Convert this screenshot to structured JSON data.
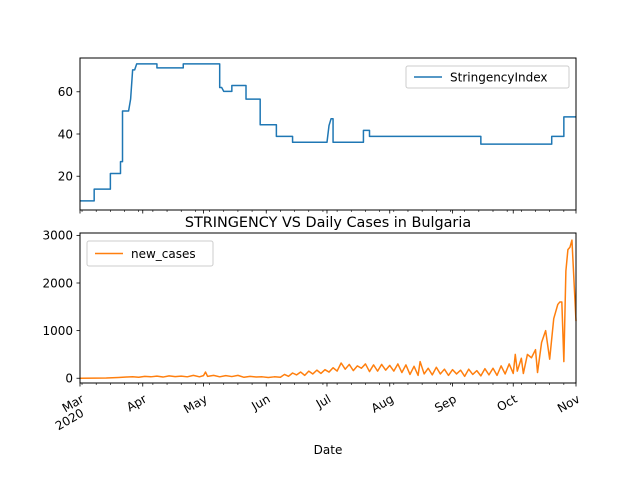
{
  "chart_data": [
    {
      "type": "line",
      "title": "",
      "xlabel": "",
      "ylabel": "",
      "x_range": [
        "2020-03-01",
        "2020-11-01"
      ],
      "ylim": [
        4,
        76
      ],
      "yticks": [
        20,
        40,
        60
      ],
      "legend": "top-right",
      "series": [
        {
          "name": "StringencyIndex",
          "color": "#1f77b4",
          "points": [
            [
              "2020-03-01",
              8.3
            ],
            [
              "2020-03-08",
              8.3
            ],
            [
              "2020-03-08",
              13.9
            ],
            [
              "2020-03-16",
              13.9
            ],
            [
              "2020-03-16",
              21.3
            ],
            [
              "2020-03-21",
              21.3
            ],
            [
              "2020-03-21",
              26.9
            ],
            [
              "2020-03-22",
              26.9
            ],
            [
              "2020-03-22",
              50.9
            ],
            [
              "2020-03-25",
              50.9
            ],
            [
              "2020-03-26",
              56.5
            ],
            [
              "2020-03-27",
              70.4
            ],
            [
              "2020-03-28",
              70.4
            ],
            [
              "2020-03-29",
              73.2
            ],
            [
              "2020-04-08",
              73.2
            ],
            [
              "2020-04-08",
              71.3
            ],
            [
              "2020-04-21",
              71.3
            ],
            [
              "2020-04-21",
              73.2
            ],
            [
              "2020-05-09",
              73.2
            ],
            [
              "2020-05-09",
              62.0
            ],
            [
              "2020-05-10",
              62.0
            ],
            [
              "2020-05-11",
              60.2
            ],
            [
              "2020-05-15",
              60.2
            ],
            [
              "2020-05-15",
              63.0
            ],
            [
              "2020-05-22",
              63.0
            ],
            [
              "2020-05-22",
              56.5
            ],
            [
              "2020-05-29",
              56.5
            ],
            [
              "2020-05-29",
              44.4
            ],
            [
              "2020-06-06",
              44.4
            ],
            [
              "2020-06-06",
              38.9
            ],
            [
              "2020-06-14",
              38.9
            ],
            [
              "2020-06-14",
              36.1
            ],
            [
              "2020-07-01",
              36.1
            ],
            [
              "2020-07-02",
              44.0
            ],
            [
              "2020-07-03",
              47.2
            ],
            [
              "2020-07-04",
              47.2
            ],
            [
              "2020-07-04",
              36.1
            ],
            [
              "2020-07-19",
              36.1
            ],
            [
              "2020-07-19",
              41.7
            ],
            [
              "2020-07-22",
              41.7
            ],
            [
              "2020-07-22",
              38.9
            ],
            [
              "2020-09-15",
              38.9
            ],
            [
              "2020-09-15",
              35.2
            ],
            [
              "2020-10-20",
              35.2
            ],
            [
              "2020-10-20",
              38.9
            ],
            [
              "2020-10-26",
              38.9
            ],
            [
              "2020-10-26",
              48.1
            ],
            [
              "2020-11-01",
              48.1
            ]
          ]
        }
      ]
    },
    {
      "type": "line",
      "title": "STRINGENCY VS Daily Cases in Bulgaria",
      "xlabel": "Date",
      "ylabel": "",
      "x_range": [
        "2020-03-01",
        "2020-11-01"
      ],
      "ylim": [
        -100,
        3050
      ],
      "yticks": [
        0,
        1000,
        2000,
        3000
      ],
      "legend": "top-left",
      "xticks": [
        {
          "date": "2020-03-01",
          "label": "Mar",
          "sub": "2020"
        },
        {
          "date": "2020-04-01",
          "label": "Apr"
        },
        {
          "date": "2020-05-01",
          "label": "May"
        },
        {
          "date": "2020-06-01",
          "label": "Jun"
        },
        {
          "date": "2020-07-01",
          "label": "Jul"
        },
        {
          "date": "2020-08-01",
          "label": "Aug"
        },
        {
          "date": "2020-09-01",
          "label": "Sep"
        },
        {
          "date": "2020-10-01",
          "label": "Oct"
        },
        {
          "date": "2020-11-01",
          "label": "Nov"
        }
      ],
      "series": [
        {
          "name": "new_cases",
          "color": "#ff7f0e",
          "points": [
            [
              "2020-03-01",
              0
            ],
            [
              "2020-03-08",
              2
            ],
            [
              "2020-03-14",
              5
            ],
            [
              "2020-03-20",
              15
            ],
            [
              "2020-03-24",
              25
            ],
            [
              "2020-03-27",
              30
            ],
            [
              "2020-03-30",
              20
            ],
            [
              "2020-04-02",
              40
            ],
            [
              "2020-04-05",
              30
            ],
            [
              "2020-04-08",
              45
            ],
            [
              "2020-04-11",
              25
            ],
            [
              "2020-04-14",
              50
            ],
            [
              "2020-04-17",
              35
            ],
            [
              "2020-04-20",
              45
            ],
            [
              "2020-04-23",
              30
            ],
            [
              "2020-04-26",
              60
            ],
            [
              "2020-04-29",
              30
            ],
            [
              "2020-05-01",
              55
            ],
            [
              "2020-05-02",
              130
            ],
            [
              "2020-05-03",
              40
            ],
            [
              "2020-05-06",
              60
            ],
            [
              "2020-05-09",
              30
            ],
            [
              "2020-05-12",
              55
            ],
            [
              "2020-05-15",
              35
            ],
            [
              "2020-05-18",
              60
            ],
            [
              "2020-05-21",
              20
            ],
            [
              "2020-05-24",
              40
            ],
            [
              "2020-05-27",
              25
            ],
            [
              "2020-05-30",
              30
            ],
            [
              "2020-06-02",
              15
            ],
            [
              "2020-06-05",
              30
            ],
            [
              "2020-06-08",
              20
            ],
            [
              "2020-06-10",
              80
            ],
            [
              "2020-06-12",
              40
            ],
            [
              "2020-06-14",
              110
            ],
            [
              "2020-06-16",
              70
            ],
            [
              "2020-06-18",
              130
            ],
            [
              "2020-06-20",
              60
            ],
            [
              "2020-06-22",
              150
            ],
            [
              "2020-06-24",
              90
            ],
            [
              "2020-06-26",
              170
            ],
            [
              "2020-06-28",
              100
            ],
            [
              "2020-06-30",
              180
            ],
            [
              "2020-07-02",
              130
            ],
            [
              "2020-07-04",
              220
            ],
            [
              "2020-07-06",
              150
            ],
            [
              "2020-07-08",
              320
            ],
            [
              "2020-07-10",
              190
            ],
            [
              "2020-07-12",
              290
            ],
            [
              "2020-07-14",
              160
            ],
            [
              "2020-07-16",
              260
            ],
            [
              "2020-07-18",
              210
            ],
            [
              "2020-07-20",
              300
            ],
            [
              "2020-07-22",
              140
            ],
            [
              "2020-07-24",
              280
            ],
            [
              "2020-07-26",
              150
            ],
            [
              "2020-07-28",
              290
            ],
            [
              "2020-07-30",
              170
            ],
            [
              "2020-08-01",
              270
            ],
            [
              "2020-08-03",
              150
            ],
            [
              "2020-08-05",
              300
            ],
            [
              "2020-08-07",
              120
            ],
            [
              "2020-08-09",
              280
            ],
            [
              "2020-08-11",
              80
            ],
            [
              "2020-08-13",
              250
            ],
            [
              "2020-08-15",
              60
            ],
            [
              "2020-08-16",
              350
            ],
            [
              "2020-08-18",
              90
            ],
            [
              "2020-08-20",
              210
            ],
            [
              "2020-08-22",
              70
            ],
            [
              "2020-08-24",
              230
            ],
            [
              "2020-08-26",
              90
            ],
            [
              "2020-08-28",
              190
            ],
            [
              "2020-08-30",
              60
            ],
            [
              "2020-09-01",
              180
            ],
            [
              "2020-09-03",
              90
            ],
            [
              "2020-09-05",
              170
            ],
            [
              "2020-09-07",
              40
            ],
            [
              "2020-09-09",
              190
            ],
            [
              "2020-09-11",
              80
            ],
            [
              "2020-09-13",
              160
            ],
            [
              "2020-09-15",
              50
            ],
            [
              "2020-09-17",
              200
            ],
            [
              "2020-09-19",
              70
            ],
            [
              "2020-09-21",
              210
            ],
            [
              "2020-09-23",
              60
            ],
            [
              "2020-09-25",
              260
            ],
            [
              "2020-09-27",
              90
            ],
            [
              "2020-09-29",
              300
            ],
            [
              "2020-10-01",
              100
            ],
            [
              "2020-10-02",
              500
            ],
            [
              "2020-10-03",
              150
            ],
            [
              "2020-10-05",
              420
            ],
            [
              "2020-10-06",
              100
            ],
            [
              "2020-10-08",
              500
            ],
            [
              "2020-10-10",
              430
            ],
            [
              "2020-10-12",
              600
            ],
            [
              "2020-10-13",
              120
            ],
            [
              "2020-10-15",
              750
            ],
            [
              "2020-10-17",
              1000
            ],
            [
              "2020-10-19",
              400
            ],
            [
              "2020-10-21",
              1250
            ],
            [
              "2020-10-23",
              1550
            ],
            [
              "2020-10-24",
              1600
            ],
            [
              "2020-10-25",
              1600
            ],
            [
              "2020-10-26",
              350
            ],
            [
              "2020-10-27",
              2250
            ],
            [
              "2020-10-28",
              2700
            ],
            [
              "2020-10-29",
              2750
            ],
            [
              "2020-10-30",
              2900
            ],
            [
              "2020-11-01",
              1200
            ]
          ]
        }
      ]
    }
  ]
}
